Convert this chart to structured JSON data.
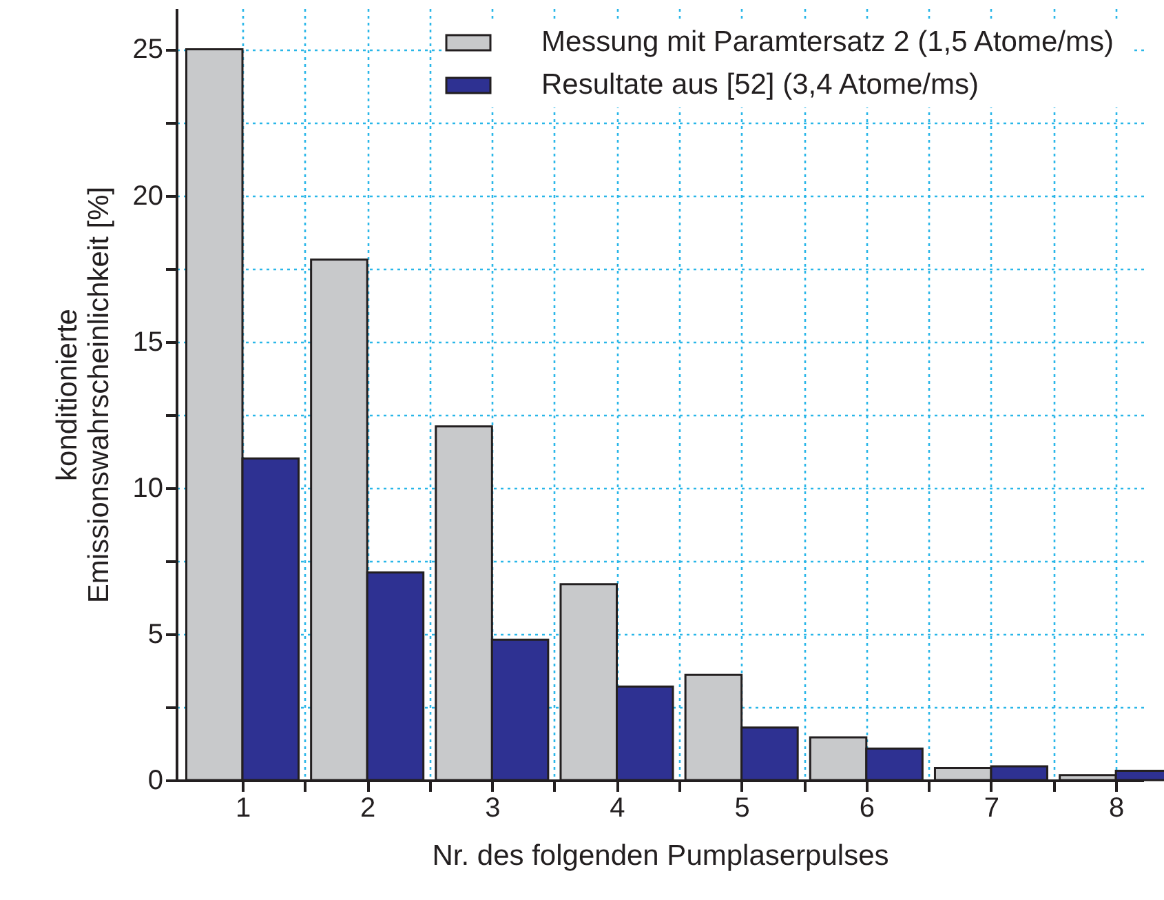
{
  "chart_data": {
    "type": "bar",
    "xlabel": "Nr. des folgenden Pumplaserpulses",
    "ylabel": "konditionierte\nEmissionswahrscheinlichkeit [%]",
    "x": [
      1,
      2,
      3,
      4,
      5,
      6,
      7,
      8
    ],
    "series": [
      {
        "name": "Messung mit Paramtersatz 2  (1,5 Atome/ms)",
        "color": "#c8c9cb",
        "values": [
          25.0,
          17.8,
          12.1,
          6.7,
          3.6,
          1.46,
          0.41,
          0.17
        ]
      },
      {
        "name": "Resultate aus [52]  (3,4 Atome/ms)",
        "color": "#2e3192",
        "values": [
          11.0,
          7.1,
          4.8,
          3.2,
          1.8,
          1.08,
          0.47,
          0.32
        ]
      }
    ],
    "xlim": [
      0.47,
      8.22
    ],
    "xticks": [
      1,
      {
        "value": 1.5,
        "label": null
      },
      2,
      {
        "value": 2.5,
        "label": null
      },
      3,
      {
        "value": 3.5,
        "label": null
      },
      4,
      {
        "value": 4.5,
        "label": null
      },
      5,
      {
        "value": 5.5,
        "label": null
      },
      6,
      {
        "value": 6.5,
        "label": null
      },
      7,
      {
        "value": 7.5,
        "label": null
      },
      8
    ],
    "ylim": [
      0,
      26.4
    ],
    "yticks": [
      0,
      {
        "value": 2.5,
        "label": null
      },
      5,
      {
        "value": 7.5,
        "label": null
      },
      10,
      {
        "value": 12.5,
        "label": null
      },
      15,
      {
        "value": 17.5,
        "label": null
      },
      20,
      {
        "value": 22.5,
        "label": null
      },
      25
    ],
    "grid": true,
    "legend": "top right"
  }
}
